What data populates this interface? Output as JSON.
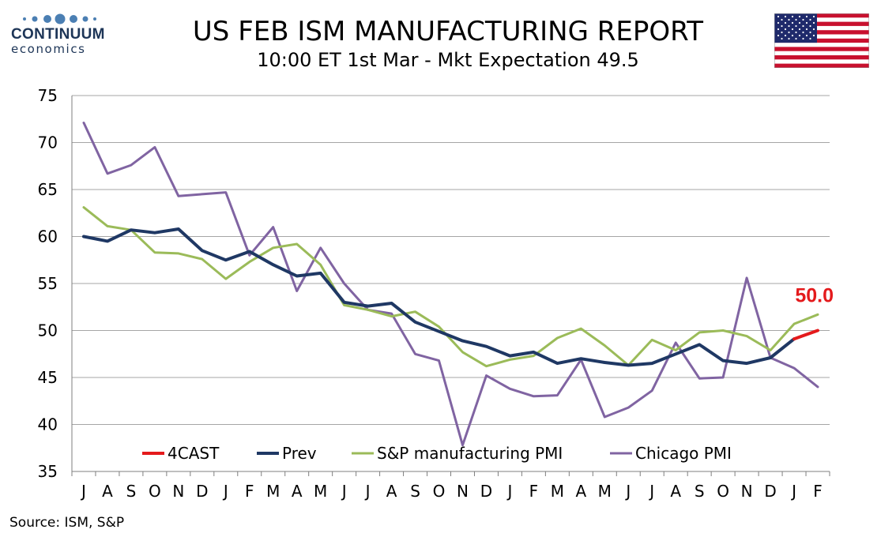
{
  "logo": {
    "name": "CONTINUUM",
    "sub": "economics"
  },
  "header": {
    "title": "US FEB ISM MANUFACTURING REPORT",
    "subtitle": "10:00 ET 1st Mar - Mkt Expectation 49.5"
  },
  "source": "Source: ISM, S&P",
  "flag": "us-flag",
  "chart_data": {
    "type": "line",
    "categories": [
      "J",
      "A",
      "S",
      "O",
      "N",
      "D",
      "J",
      "F",
      "M",
      "A",
      "M",
      "J",
      "J",
      "A",
      "S",
      "O",
      "N",
      "D",
      "J",
      "F",
      "M",
      "A",
      "M",
      "J",
      "J",
      "A",
      "S",
      "O",
      "N",
      "D",
      "J",
      "F"
    ],
    "ylim": [
      35,
      75
    ],
    "yticks": [
      35,
      40,
      45,
      50,
      55,
      60,
      65,
      70,
      75
    ],
    "grid": true,
    "legend_position": "bottom-inside",
    "annotation": {
      "text": "50.0",
      "category_index": 31,
      "value": 50.0,
      "color": "#e41a1c"
    },
    "series": [
      {
        "name": "4CAST",
        "color": "#e41a1c",
        "width": 4,
        "values": [
          null,
          null,
          null,
          null,
          null,
          null,
          null,
          null,
          null,
          null,
          null,
          null,
          null,
          null,
          null,
          null,
          null,
          null,
          null,
          null,
          null,
          null,
          null,
          null,
          null,
          null,
          null,
          null,
          null,
          null,
          49.1,
          50.0
        ]
      },
      {
        "name": "Prev",
        "color": "#1f3864",
        "width": 4,
        "values": [
          60.0,
          59.5,
          60.7,
          60.4,
          60.8,
          58.5,
          57.5,
          58.4,
          57.0,
          55.8,
          56.1,
          53.0,
          52.6,
          52.9,
          50.9,
          49.9,
          48.9,
          48.3,
          47.3,
          47.7,
          46.5,
          47.0,
          46.6,
          46.3,
          46.5,
          47.5,
          48.5,
          46.8,
          46.5,
          47.1,
          49.1,
          null
        ]
      },
      {
        "name": "S&P manufacturing PMI",
        "color": "#9bbb59",
        "width": 3,
        "values": [
          63.1,
          61.1,
          60.7,
          58.3,
          58.2,
          57.6,
          55.5,
          57.3,
          58.8,
          59.2,
          57.0,
          52.7,
          52.2,
          51.5,
          52.0,
          50.4,
          47.7,
          46.2,
          46.9,
          47.3,
          49.2,
          50.2,
          48.4,
          46.3,
          49.0,
          47.9,
          49.8,
          50.0,
          49.4,
          47.9,
          50.7,
          51.7
        ]
      },
      {
        "name": "Chicago PMI",
        "color": "#8064a2",
        "width": 3,
        "values": [
          72.1,
          66.7,
          67.6,
          69.5,
          64.3,
          64.5,
          64.7,
          58.0,
          61.0,
          54.2,
          58.8,
          55.0,
          52.2,
          51.8,
          47.5,
          46.8,
          37.8,
          45.2,
          43.8,
          43.0,
          43.1,
          46.9,
          40.8,
          41.8,
          43.6,
          48.7,
          44.9,
          45.0,
          55.6,
          47.1,
          46.0,
          44.0
        ]
      }
    ]
  }
}
